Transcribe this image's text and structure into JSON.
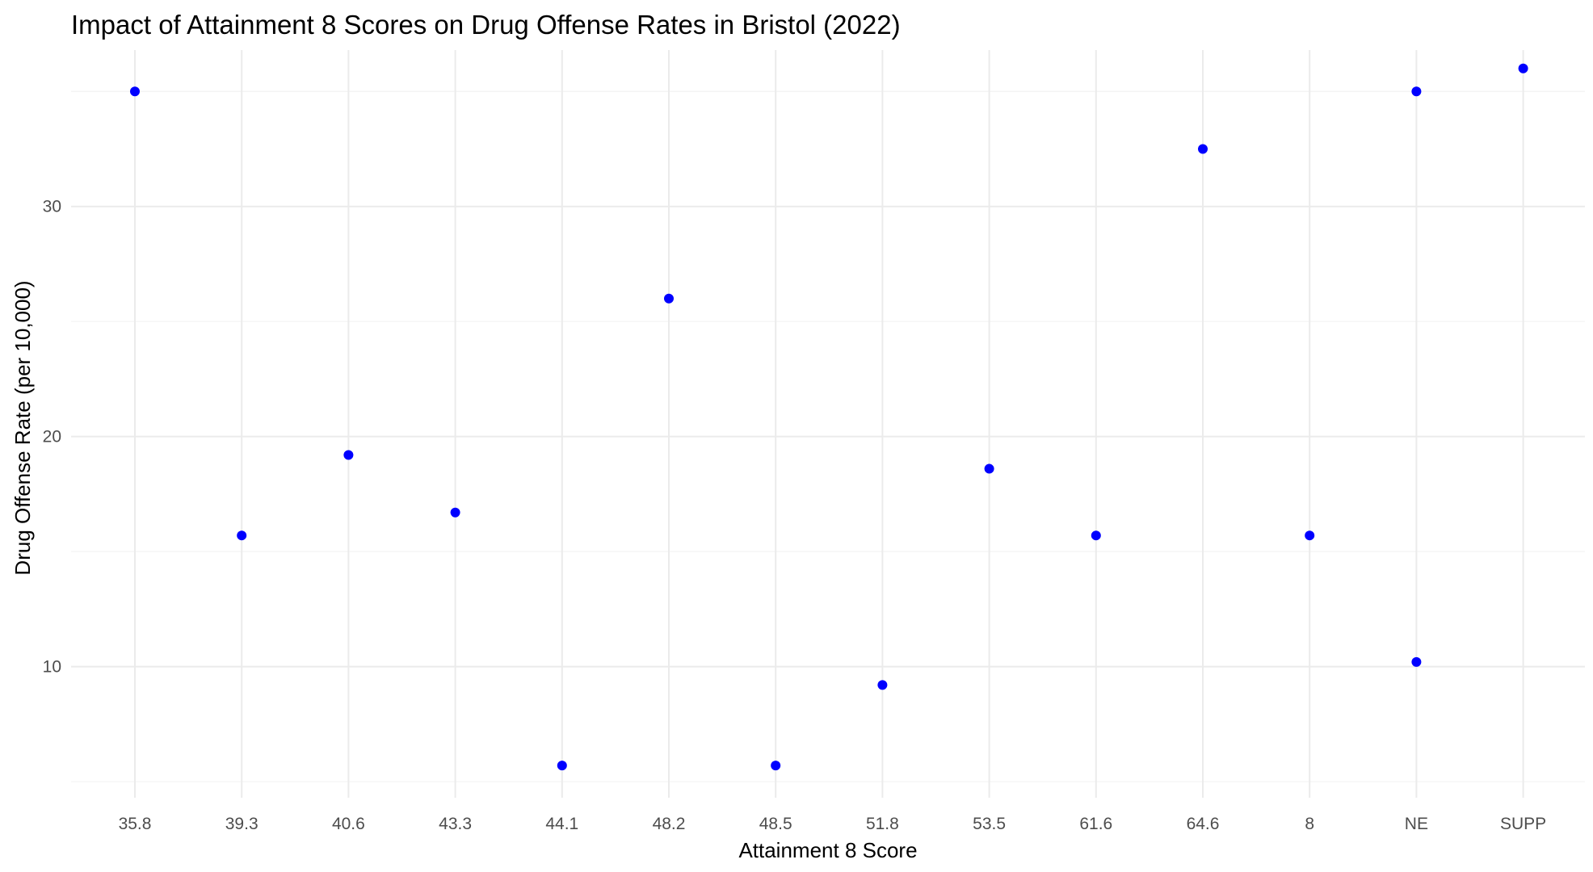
{
  "chart_data": {
    "type": "scatter",
    "title": "Impact of Attainment 8 Scores on Drug Offense Rates in Bristol (2022)",
    "xlabel": "Attainment 8 Score",
    "ylabel": "Drug Offense Rate (per 10,000)",
    "x_categories": [
      "35.8",
      "39.3",
      "40.6",
      "43.3",
      "44.1",
      "48.2",
      "48.5",
      "51.8",
      "53.5",
      "61.6",
      "64.6",
      "8",
      "NE",
      "SUPP"
    ],
    "y_ticks": [
      10,
      20,
      30
    ],
    "y_minor_ticks": [
      5,
      15,
      25,
      35
    ],
    "ylim": [
      4.3,
      36.8
    ],
    "grid": true,
    "legend": "none",
    "point_color": "#0000FF",
    "points": [
      {
        "x": "35.8",
        "y": 35.0
      },
      {
        "x": "39.3",
        "y": 15.7
      },
      {
        "x": "40.6",
        "y": 19.2
      },
      {
        "x": "43.3",
        "y": 16.7
      },
      {
        "x": "44.1",
        "y": 5.7
      },
      {
        "x": "48.2",
        "y": 26.0
      },
      {
        "x": "48.5",
        "y": 5.7
      },
      {
        "x": "51.8",
        "y": 9.2
      },
      {
        "x": "53.5",
        "y": 18.6
      },
      {
        "x": "61.6",
        "y": 15.7
      },
      {
        "x": "64.6",
        "y": 32.5
      },
      {
        "x": "8",
        "y": 15.7
      },
      {
        "x": "NE",
        "y": 35.0
      },
      {
        "x": "NE",
        "y": 10.2
      },
      {
        "x": "SUPP",
        "y": 36.0
      }
    ]
  }
}
